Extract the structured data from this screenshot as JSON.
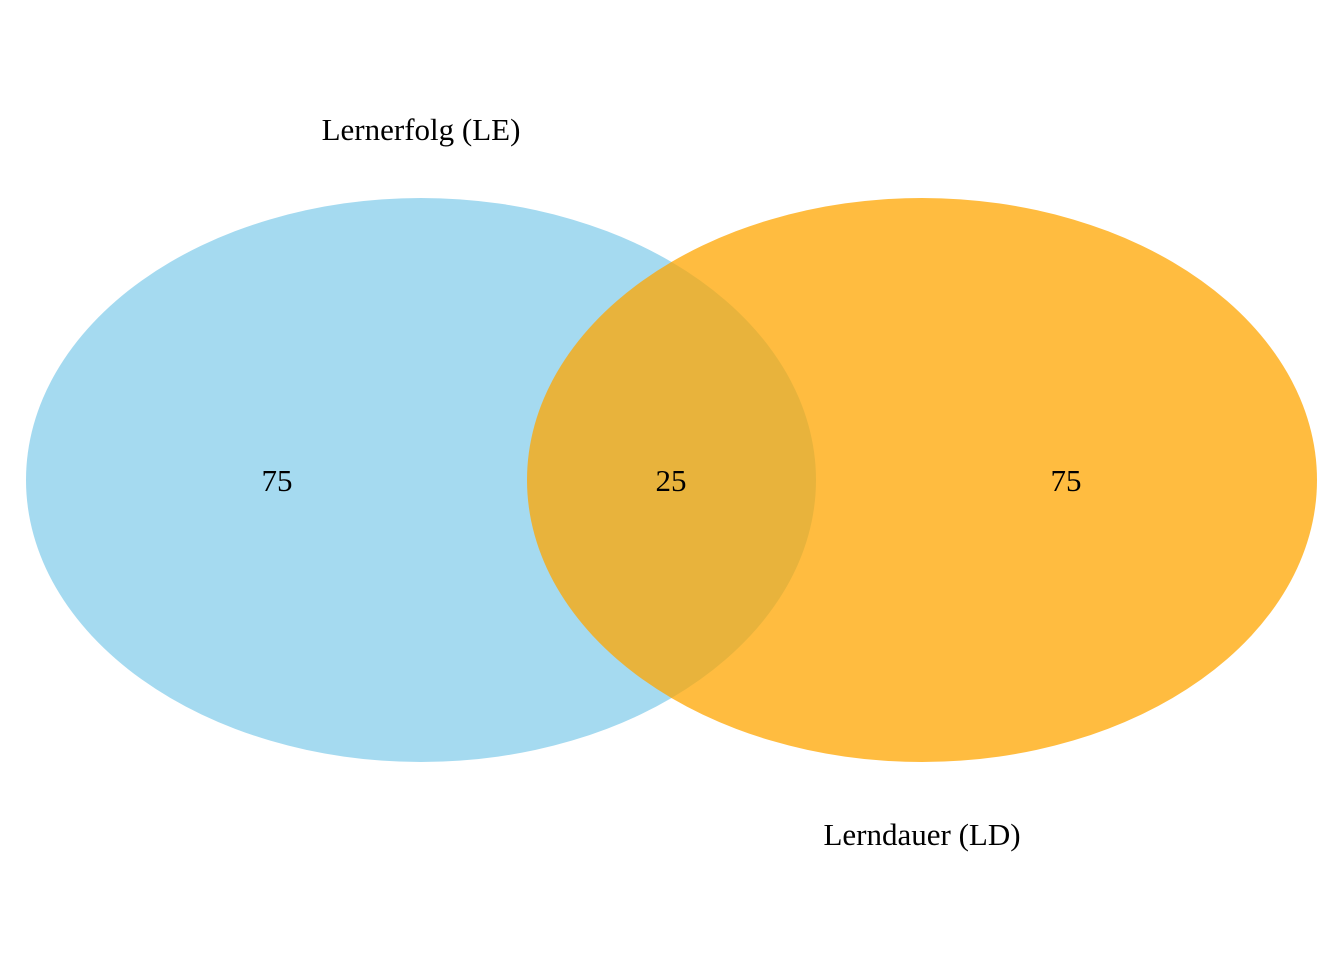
{
  "chart_data": {
    "type": "venn",
    "sets": [
      {
        "name": "Lernerfolg (LE)",
        "color": "#87CEEB",
        "opacity": 0.75
      },
      {
        "name": "Lerndauer (LD)",
        "color": "#FFA500",
        "opacity": 0.75
      }
    ],
    "regions": [
      {
        "sets": [
          "Lernerfolg (LE)"
        ],
        "value": "75"
      },
      {
        "sets": [
          "Lernerfolg (LE)",
          "Lerndauer (LD)"
        ],
        "value": "25"
      },
      {
        "sets": [
          "Lerndauer (LD)"
        ],
        "value": "75"
      }
    ]
  }
}
